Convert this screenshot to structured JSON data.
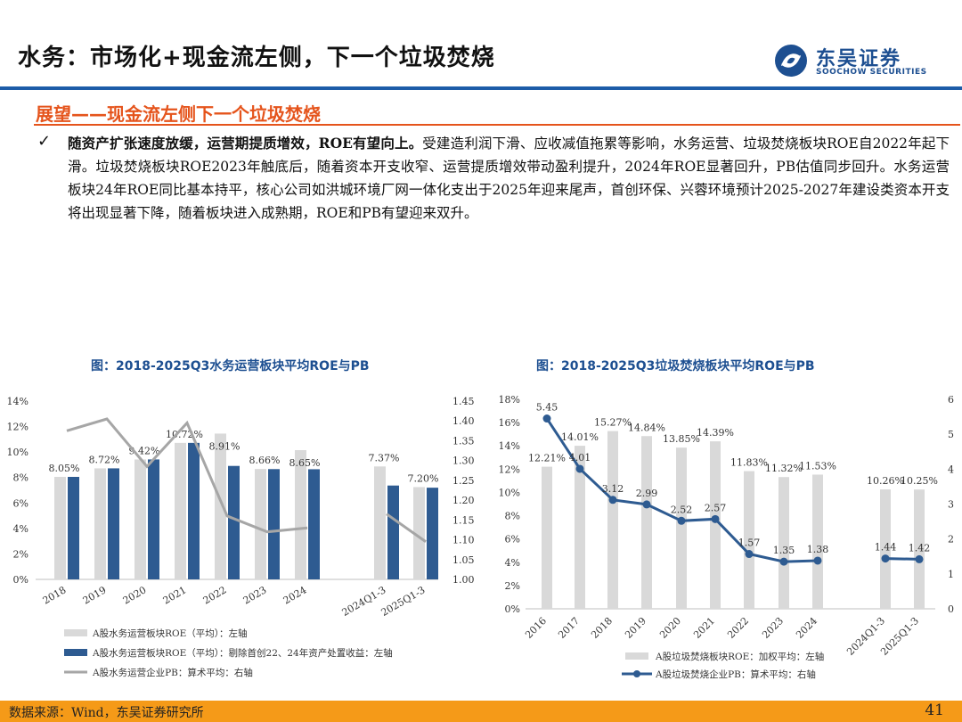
{
  "header": {
    "title": "水务：市场化+现金流左侧，下一个垃圾焚烧",
    "logo_cn": "东吴证券",
    "logo_en": "SOOCHOW SECURITIES"
  },
  "section": {
    "title": "展望——现金流左侧下一个垃圾焚烧",
    "bullet_bold": "随资产扩张速度放缓，运营期提质增效，ROE有望向上。",
    "bullet_text": "受建造利润下滑、应收减值拖累等影响，水务运营、垃圾焚烧板块ROE自2022年起下滑。垃圾焚烧板块ROE2023年触底后，随着资本开支收窄、运营提质增效带动盈利提升，2024年ROE显著回升，PB估值同步回升。水务运营板块24年ROE同比基本持平，核心公司如洪城环境厂网一体化支出于2025年迎来尾声，首创环保、兴蓉环境预计2025-2027年建设类资本开支将出现显著下降，随着板块进入成熟期，ROE和PB有望迎来双升。"
  },
  "footer": {
    "source": "数据来源：Wind，东吴证券研究所",
    "page": "41"
  },
  "colors": {
    "accent_blue": "#1d4f91",
    "bar_gray": "#d9d9d9",
    "bar_navy": "#2e5b91",
    "line_gray": "#a6a6a6",
    "orange": "#e5541c",
    "footer": "#f59a18"
  },
  "chart_data": [
    {
      "type": "bar",
      "title": "图：2018-2025Q3水务运营板块平均ROE与PB",
      "categories": [
        "2018",
        "2019",
        "2020",
        "2021",
        "2022",
        "2023",
        "2024",
        "2024Q1-3",
        "2025Q1-3"
      ],
      "y_left_ticks": [
        "0%",
        "2%",
        "4%",
        "6%",
        "8%",
        "10%",
        "12%",
        "14%"
      ],
      "y_right_ticks": [
        "1.00",
        "1.05",
        "1.10",
        "1.15",
        "1.20",
        "1.25",
        "1.30",
        "1.35",
        "1.40",
        "1.45"
      ],
      "ylim_left": [
        0,
        14
      ],
      "ylim_right": [
        1.0,
        1.45
      ],
      "series": [
        {
          "name": "A股水务运营板块ROE（平均）：左轴",
          "kind": "bar",
          "axis": "left",
          "values": [
            8.05,
            8.72,
            9.42,
            10.72,
            11.45,
            8.67,
            10.15,
            8.87,
            7.25
          ]
        },
        {
          "name": "A股水务运营板块ROE（平均）：剔除首创22、24年资产处置收益：左轴",
          "kind": "bar",
          "axis": "left",
          "values": [
            8.05,
            8.72,
            9.42,
            10.72,
            8.91,
            8.66,
            8.65,
            7.37,
            7.2
          ],
          "labels": [
            "8.05%",
            "8.72%",
            "9.42%",
            "10.72%",
            "8.91%",
            "8.66%",
            "8.65%",
            "7.37%",
            "7.20%"
          ]
        },
        {
          "name": "A股水务运营企业PB：算术平均：右轴",
          "kind": "line",
          "axis": "right",
          "segments": [
            {
              "categories": [
                "2018",
                "2019",
                "2020",
                "2021",
                "2022",
                "2023",
                "2024"
              ],
              "values": [
                1.375,
                1.405,
                1.285,
                1.395,
                1.16,
                1.12,
                1.13
              ]
            },
            {
              "categories": [
                "2024Q1-3",
                "2025Q1-3"
              ],
              "values": [
                1.165,
                1.095
              ]
            }
          ]
        }
      ]
    },
    {
      "type": "bar",
      "title": "图：2018-2025Q3垃圾焚烧板块平均ROE与PB",
      "categories": [
        "2016",
        "2017",
        "2018",
        "2019",
        "2020",
        "2021",
        "2022",
        "2023",
        "2024",
        "2024Q1-3",
        "2025Q1-3"
      ],
      "y_left_ticks": [
        "0%",
        "2%",
        "4%",
        "6%",
        "8%",
        "10%",
        "12%",
        "14%",
        "16%",
        "18%"
      ],
      "y_right_ticks": [
        "0",
        "1",
        "2",
        "3",
        "4",
        "5",
        "6"
      ],
      "ylim_left": [
        0,
        18
      ],
      "ylim_right": [
        0,
        6
      ],
      "series": [
        {
          "name": "A股垃圾焚烧板块ROE：加权平均：左轴",
          "kind": "bar",
          "axis": "left",
          "values": [
            12.21,
            14.01,
            15.27,
            14.84,
            13.85,
            14.39,
            11.83,
            11.32,
            11.53,
            10.26,
            10.25
          ],
          "labels": [
            "12.21%",
            "14.01%",
            "15.27%",
            "14.84%",
            "13.85%",
            "14.39%",
            "11.83%",
            "11.32%",
            "11.53%",
            "10.26%",
            "10.25%"
          ]
        },
        {
          "name": "A股垃圾焚烧企业PB：算术平均：右轴",
          "kind": "line",
          "axis": "right",
          "segments": [
            {
              "categories": [
                "2016",
                "2017",
                "2018",
                "2019",
                "2020",
                "2021",
                "2022",
                "2023",
                "2024"
              ],
              "values": [
                5.45,
                4.01,
                3.12,
                2.99,
                2.52,
                2.57,
                1.57,
                1.35,
                1.38
              ],
              "labels": [
                "5.45",
                "4.01",
                "3.12",
                "2.99",
                "2.52",
                "2.57",
                "1.57",
                "1.35",
                "1.38"
              ]
            },
            {
              "categories": [
                "2024Q1-3",
                "2025Q1-3"
              ],
              "values": [
                1.44,
                1.42
              ],
              "labels": [
                "1.44",
                "1.42"
              ]
            }
          ]
        }
      ]
    }
  ]
}
